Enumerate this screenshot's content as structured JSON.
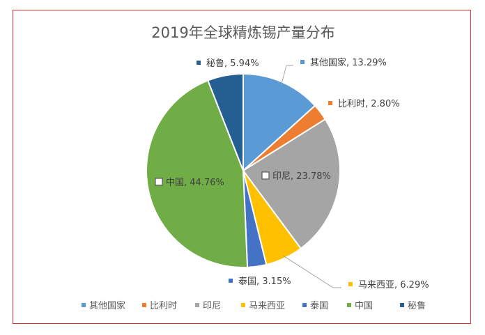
{
  "chart_data": {
    "type": "pie",
    "title": "2019年全球精炼锡产量分布",
    "slices": [
      {
        "name": "其他国家",
        "value": 13.29,
        "label": "13.29%",
        "color": "#5b9bd5"
      },
      {
        "name": "比利时",
        "value": 2.8,
        "label": "2.80%",
        "color": "#ed7d31"
      },
      {
        "name": "印尼",
        "value": 23.78,
        "label": "23.78%",
        "color": "#a5a5a5"
      },
      {
        "name": "马来西亚",
        "value": 6.29,
        "label": "6.29%",
        "color": "#ffc000"
      },
      {
        "name": "泰国",
        "value": 3.15,
        "label": "3.15%",
        "color": "#4472c4"
      },
      {
        "name": "中国",
        "value": 44.76,
        "label": "44.76%",
        "color": "#70ad47"
      },
      {
        "name": "秘鲁",
        "value": 5.94,
        "label": "5.94%",
        "color": "#255e91"
      }
    ],
    "legend_position": "bottom",
    "start_angle": "12 o'clock",
    "direction": "clockwise"
  }
}
